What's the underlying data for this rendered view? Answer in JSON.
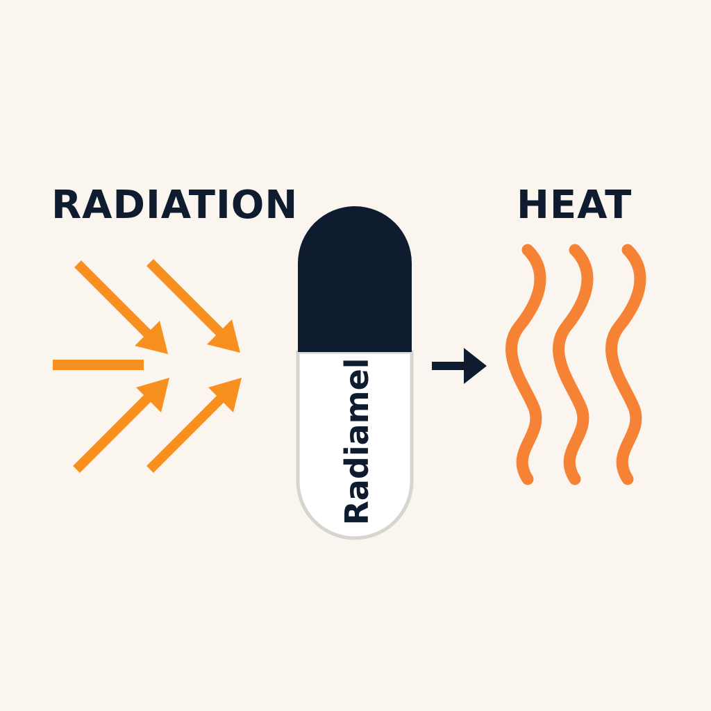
{
  "labels": {
    "radiation": "RADIATION",
    "heat": "HEAT"
  },
  "capsule": {
    "brand": "Radiamel"
  },
  "icons": {
    "radiation_arrows": "incoming-arrow-icon",
    "process_arrow": "arrow-right-icon",
    "heat_waves": "wavy-heat-icon"
  },
  "colors": {
    "background": "#FAF6EF",
    "navy": "#0F1C30",
    "orange": "#F7901E",
    "heat_orange": "#F58235",
    "capsule_white": "#FFFFFF",
    "capsule_outline": "#D7D5D0"
  }
}
